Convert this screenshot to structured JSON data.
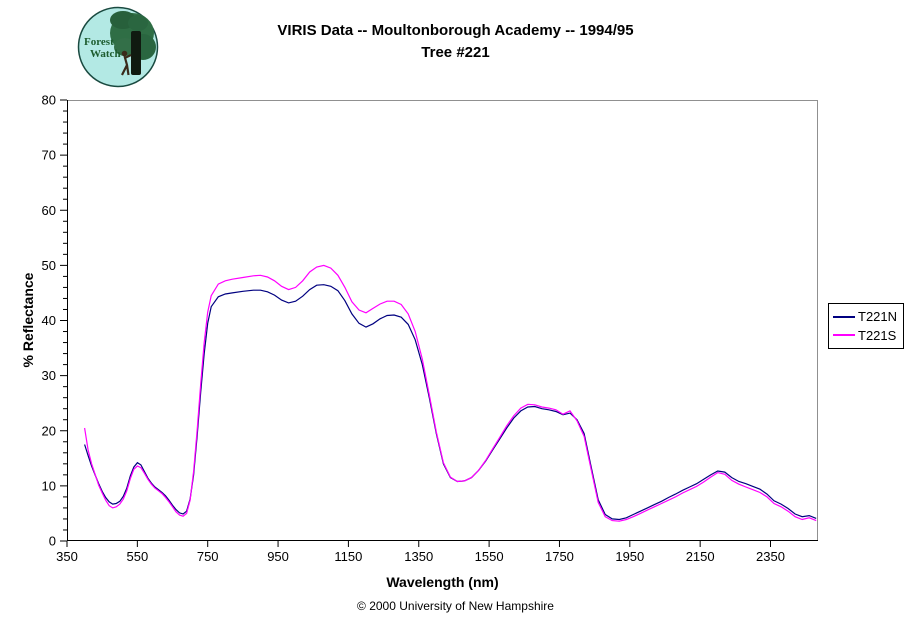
{
  "page": {
    "background": "#ffffff"
  },
  "logo": {
    "line1": "Forest",
    "line2": "Watch"
  },
  "title": {
    "line1": "VIRIS Data -- Moultonborough Academy -- 1994/95",
    "line2": "Tree #221"
  },
  "footer": {
    "copyright": "© 2000 University of New Hampshire"
  },
  "legend": {
    "position": "right-outside"
  },
  "chart_data": {
    "type": "line",
    "title": "VIRIS Data -- Moultonborough Academy -- 1994/95 Tree #221",
    "xlabel": "Wavelength (nm)",
    "ylabel": "% Reflectance",
    "xlim": [
      350,
      2485
    ],
    "ylim": [
      0,
      80
    ],
    "x_ticks": [
      350,
      550,
      750,
      950,
      1150,
      1350,
      1550,
      1750,
      1950,
      2150,
      2350
    ],
    "y_ticks": [
      0,
      10,
      20,
      30,
      40,
      50,
      60,
      70,
      80
    ],
    "y_minor_step": 2,
    "grid": false,
    "axis_color": "#000000",
    "frame_color": "#909090",
    "legend_position": "right",
    "x": [
      400,
      410,
      420,
      430,
      440,
      450,
      460,
      470,
      480,
      490,
      500,
      510,
      520,
      530,
      540,
      550,
      560,
      570,
      580,
      590,
      600,
      610,
      620,
      630,
      640,
      650,
      660,
      670,
      680,
      690,
      700,
      710,
      720,
      730,
      740,
      750,
      760,
      780,
      800,
      820,
      850,
      880,
      900,
      920,
      940,
      960,
      980,
      1000,
      1020,
      1040,
      1060,
      1080,
      1100,
      1120,
      1140,
      1160,
      1180,
      1200,
      1220,
      1240,
      1260,
      1280,
      1300,
      1320,
      1340,
      1360,
      1380,
      1400,
      1420,
      1440,
      1460,
      1480,
      1500,
      1520,
      1540,
      1560,
      1580,
      1600,
      1620,
      1640,
      1660,
      1680,
      1700,
      1720,
      1740,
      1760,
      1780,
      1800,
      1820,
      1840,
      1860,
      1880,
      1900,
      1920,
      1940,
      1960,
      1980,
      2000,
      2020,
      2040,
      2060,
      2080,
      2100,
      2120,
      2140,
      2160,
      2180,
      2200,
      2220,
      2240,
      2260,
      2280,
      2300,
      2320,
      2340,
      2360,
      2380,
      2400,
      2420,
      2440,
      2460,
      2480
    ],
    "series": [
      {
        "name": "T221N",
        "color": "#000080",
        "values": [
          17.5,
          15.5,
          13.6,
          12.0,
          10.4,
          9.0,
          7.9,
          7.1,
          6.7,
          6.8,
          7.2,
          8.1,
          9.6,
          11.8,
          13.4,
          14.2,
          13.8,
          12.6,
          11.4,
          10.5,
          9.8,
          9.3,
          8.8,
          8.2,
          7.4,
          6.5,
          5.7,
          5.1,
          4.9,
          5.4,
          7.6,
          12.0,
          19.0,
          27.0,
          34.0,
          39.5,
          42.5,
          44.3,
          44.8,
          45.0,
          45.3,
          45.5,
          45.5,
          45.2,
          44.6,
          43.7,
          43.2,
          43.5,
          44.4,
          45.6,
          46.4,
          46.5,
          46.2,
          45.4,
          43.6,
          41.2,
          39.5,
          38.8,
          39.4,
          40.3,
          40.9,
          41.0,
          40.6,
          39.3,
          36.5,
          32.0,
          26.0,
          19.5,
          14.0,
          11.5,
          10.8,
          10.9,
          11.5,
          12.8,
          14.5,
          16.5,
          18.5,
          20.5,
          22.3,
          23.6,
          24.3,
          24.4,
          24.0,
          23.8,
          23.5,
          22.9,
          23.2,
          22.0,
          19.5,
          13.5,
          7.5,
          4.8,
          4.0,
          3.9,
          4.2,
          4.8,
          5.4,
          6.0,
          6.6,
          7.2,
          7.9,
          8.5,
          9.2,
          9.8,
          10.4,
          11.2,
          12.0,
          12.7,
          12.5,
          11.5,
          10.8,
          10.4,
          9.9,
          9.4,
          8.5,
          7.3,
          6.7,
          5.9,
          4.9,
          4.4,
          4.6,
          4.1
        ]
      },
      {
        "name": "T221S",
        "color": "#ff00ff",
        "values": [
          20.5,
          16.5,
          14.0,
          12.1,
          10.1,
          8.7,
          7.4,
          6.4,
          6.0,
          6.2,
          6.7,
          7.6,
          9.1,
          11.3,
          13.0,
          13.6,
          13.3,
          12.3,
          11.2,
          10.3,
          9.6,
          9.1,
          8.6,
          7.9,
          7.1,
          6.2,
          5.3,
          4.7,
          4.5,
          5.0,
          7.4,
          12.6,
          20.0,
          28.5,
          36.0,
          41.5,
          44.5,
          46.6,
          47.2,
          47.5,
          47.8,
          48.1,
          48.2,
          47.9,
          47.2,
          46.2,
          45.6,
          46.0,
          47.2,
          48.8,
          49.7,
          50.0,
          49.5,
          48.2,
          46.0,
          43.4,
          41.9,
          41.4,
          42.2,
          43.0,
          43.5,
          43.5,
          42.9,
          41.2,
          38.0,
          33.0,
          26.5,
          19.8,
          14.2,
          11.6,
          10.8,
          10.9,
          11.5,
          12.8,
          14.6,
          16.7,
          18.8,
          20.9,
          22.7,
          24.1,
          24.8,
          24.7,
          24.3,
          24.1,
          23.8,
          23.0,
          23.6,
          21.8,
          19.0,
          13.0,
          7.0,
          4.4,
          3.7,
          3.6,
          3.9,
          4.4,
          5.0,
          5.6,
          6.2,
          6.8,
          7.4,
          8.0,
          8.7,
          9.3,
          9.9,
          10.7,
          11.6,
          12.4,
          12.1,
          11.0,
          10.3,
          9.8,
          9.3,
          8.8,
          8.0,
          6.8,
          6.2,
          5.4,
          4.4,
          3.9,
          4.2,
          3.7
        ]
      }
    ]
  }
}
